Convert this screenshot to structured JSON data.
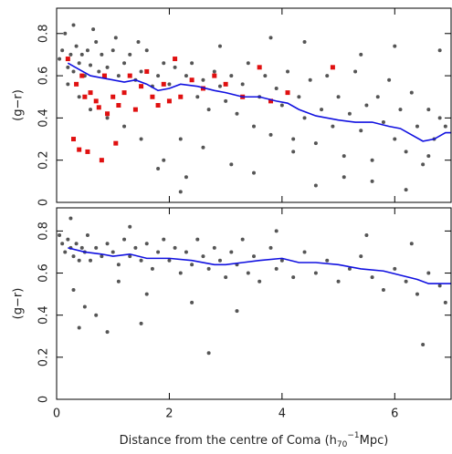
{
  "chart_data": [
    {
      "type": "scatter",
      "ylabel": "(g−r)",
      "xlim": [
        0,
        7
      ],
      "xticks": [
        0,
        2,
        4,
        6
      ],
      "ylim": [
        0,
        0.92
      ],
      "yticks": [
        0,
        0.2,
        0.4,
        0.6,
        0.8
      ],
      "series": [
        {
          "color": "#555555",
          "mark": "dot",
          "x": [
            0.05,
            0.1,
            0.15,
            0.2,
            0.25,
            0.3,
            0.35,
            0.4,
            0.45,
            0.5,
            0.55,
            0.6,
            0.7,
            0.75,
            0.8,
            0.9,
            1.0,
            1.1,
            1.2,
            1.3,
            1.4,
            1.5,
            1.6,
            1.7,
            1.8,
            1.9,
            2.0,
            2.1,
            2.2,
            2.3,
            2.4,
            2.5,
            2.6,
            2.7,
            2.8,
            2.9,
            3.0,
            3.1,
            3.2,
            3.3,
            3.4,
            3.5,
            3.6,
            3.7,
            3.8,
            3.9,
            4.0,
            4.1,
            4.2,
            4.3,
            4.4,
            4.5,
            4.6,
            4.7,
            4.8,
            4.9,
            5.0,
            5.1,
            5.2,
            5.3,
            5.4,
            5.5,
            5.6,
            5.7,
            5.8,
            5.9,
            6.0,
            6.1,
            6.2,
            6.3,
            6.4,
            6.5,
            6.6,
            6.7,
            6.8,
            6.9,
            0.2,
            0.4,
            0.6,
            0.9,
            1.2,
            1.5,
            1.9,
            2.3,
            2.6,
            3.1,
            3.5,
            4.2,
            4.6,
            5.1,
            5.6,
            6.2,
            6.6,
            1.8,
            2.2,
            0.3,
            0.65,
            1.05,
            1.45,
            2.9,
            3.8,
            4.4,
            5.4,
            6.0,
            6.8
          ],
          "y": [
            0.68,
            0.72,
            0.8,
            0.64,
            0.7,
            0.62,
            0.74,
            0.66,
            0.7,
            0.6,
            0.72,
            0.65,
            0.76,
            0.62,
            0.7,
            0.64,
            0.72,
            0.6,
            0.66,
            0.7,
            0.58,
            0.62,
            0.72,
            0.55,
            0.6,
            0.66,
            0.56,
            0.64,
            0.3,
            0.6,
            0.66,
            0.5,
            0.58,
            0.44,
            0.62,
            0.55,
            0.48,
            0.6,
            0.42,
            0.56,
            0.66,
            0.36,
            0.5,
            0.6,
            0.32,
            0.54,
            0.46,
            0.62,
            0.3,
            0.5,
            0.4,
            0.58,
            0.28,
            0.44,
            0.6,
            0.36,
            0.5,
            0.22,
            0.42,
            0.62,
            0.34,
            0.46,
            0.2,
            0.5,
            0.38,
            0.58,
            0.3,
            0.44,
            0.24,
            0.52,
            0.36,
            0.18,
            0.44,
            0.3,
            0.4,
            0.36,
            0.56,
            0.5,
            0.44,
            0.4,
            0.36,
            0.3,
            0.2,
            0.12,
            0.26,
            0.18,
            0.14,
            0.24,
            0.08,
            0.12,
            0.1,
            0.06,
            0.22,
            0.16,
            0.05,
            0.84,
            0.82,
            0.78,
            0.76,
            0.74,
            0.78,
            0.76,
            0.7,
            0.74,
            0.72
          ]
        },
        {
          "color": "#e01010",
          "mark": "square",
          "x": [
            0.2,
            0.3,
            0.35,
            0.4,
            0.45,
            0.5,
            0.55,
            0.6,
            0.7,
            0.75,
            0.8,
            0.85,
            0.9,
            1.0,
            1.05,
            1.1,
            1.2,
            1.3,
            1.4,
            1.5,
            1.6,
            1.7,
            1.8,
            1.9,
            2.0,
            2.1,
            2.2,
            2.4,
            2.6,
            2.8,
            3.0,
            3.3,
            3.6,
            3.8,
            4.1,
            4.9
          ],
          "y": [
            0.68,
            0.3,
            0.56,
            0.25,
            0.6,
            0.5,
            0.24,
            0.52,
            0.48,
            0.45,
            0.2,
            0.6,
            0.42,
            0.5,
            0.28,
            0.46,
            0.52,
            0.6,
            0.44,
            0.55,
            0.62,
            0.5,
            0.46,
            0.56,
            0.48,
            0.68,
            0.5,
            0.58,
            0.54,
            0.6,
            0.56,
            0.5,
            0.64,
            0.48,
            0.52,
            0.64
          ]
        },
        {
          "color": "#1010e0",
          "mark": "line",
          "x": [
            0.2,
            0.4,
            0.6,
            0.8,
            1.0,
            1.2,
            1.4,
            1.6,
            1.8,
            2.0,
            2.2,
            2.5,
            2.8,
            3.0,
            3.3,
            3.6,
            3.9,
            4.1,
            4.3,
            4.6,
            5.0,
            5.3,
            5.6,
            5.9,
            6.1,
            6.3,
            6.5,
            6.7,
            6.9,
            7.0
          ],
          "y": [
            0.66,
            0.63,
            0.6,
            0.59,
            0.58,
            0.57,
            0.58,
            0.56,
            0.53,
            0.54,
            0.56,
            0.55,
            0.53,
            0.52,
            0.5,
            0.5,
            0.48,
            0.47,
            0.44,
            0.41,
            0.39,
            0.38,
            0.38,
            0.36,
            0.35,
            0.32,
            0.29,
            0.3,
            0.33,
            0.33
          ]
        }
      ]
    },
    {
      "type": "scatter",
      "ylabel": "(g−r)",
      "xlabel": [
        "Distance from the centre of Coma (h",
        "70",
        "−1",
        "Mpc)"
      ],
      "xlim": [
        0,
        7
      ],
      "xticks": [
        0,
        2,
        4,
        6
      ],
      "ylim": [
        0,
        0.91
      ],
      "yticks": [
        0,
        0.2,
        0.4,
        0.6,
        0.8
      ],
      "series": [
        {
          "color": "#555555",
          "mark": "dot",
          "x": [
            0.05,
            0.1,
            0.15,
            0.2,
            0.25,
            0.3,
            0.35,
            0.4,
            0.45,
            0.5,
            0.55,
            0.6,
            0.7,
            0.8,
            0.9,
            1.0,
            1.1,
            1.2,
            1.3,
            1.4,
            1.5,
            1.6,
            1.7,
            1.8,
            1.9,
            2.0,
            2.1,
            2.2,
            2.3,
            2.4,
            2.5,
            2.6,
            2.7,
            2.8,
            2.9,
            3.0,
            3.1,
            3.2,
            3.3,
            3.4,
            3.5,
            3.6,
            3.8,
            3.9,
            4.0,
            4.2,
            4.4,
            4.6,
            4.8,
            5.0,
            5.2,
            5.4,
            5.6,
            5.8,
            6.0,
            6.2,
            6.4,
            6.6,
            6.8,
            6.9,
            0.3,
            0.5,
            0.7,
            1.1,
            1.6,
            2.4,
            3.2,
            0.4,
            0.9,
            1.5,
            2.7,
            6.5,
            0.25,
            1.3,
            3.9,
            5.5,
            6.3
          ],
          "y": [
            0.78,
            0.74,
            0.7,
            0.76,
            0.72,
            0.68,
            0.74,
            0.66,
            0.72,
            0.7,
            0.78,
            0.66,
            0.72,
            0.68,
            0.74,
            0.7,
            0.64,
            0.76,
            0.68,
            0.72,
            0.66,
            0.74,
            0.62,
            0.7,
            0.76,
            0.66,
            0.72,
            0.6,
            0.7,
            0.64,
            0.76,
            0.68,
            0.62,
            0.72,
            0.66,
            0.58,
            0.7,
            0.64,
            0.76,
            0.6,
            0.68,
            0.56,
            0.72,
            0.62,
            0.66,
            0.58,
            0.7,
            0.6,
            0.66,
            0.56,
            0.62,
            0.68,
            0.58,
            0.52,
            0.62,
            0.56,
            0.5,
            0.6,
            0.54,
            0.46,
            0.52,
            0.44,
            0.4,
            0.56,
            0.5,
            0.46,
            0.42,
            0.34,
            0.32,
            0.36,
            0.22,
            0.26,
            0.86,
            0.82,
            0.8,
            0.78,
            0.74
          ]
        },
        {
          "color": "#1010e0",
          "mark": "line",
          "x": [
            0.2,
            0.5,
            0.8,
            1.0,
            1.3,
            1.6,
            2.0,
            2.4,
            2.8,
            3.0,
            3.3,
            3.6,
            4.0,
            4.3,
            4.6,
            5.0,
            5.4,
            5.8,
            6.1,
            6.4,
            6.6,
            6.8,
            7.0
          ],
          "y": [
            0.72,
            0.7,
            0.69,
            0.68,
            0.69,
            0.67,
            0.67,
            0.66,
            0.64,
            0.64,
            0.65,
            0.66,
            0.67,
            0.65,
            0.65,
            0.64,
            0.62,
            0.61,
            0.59,
            0.57,
            0.55,
            0.55,
            0.55
          ]
        }
      ]
    }
  ]
}
